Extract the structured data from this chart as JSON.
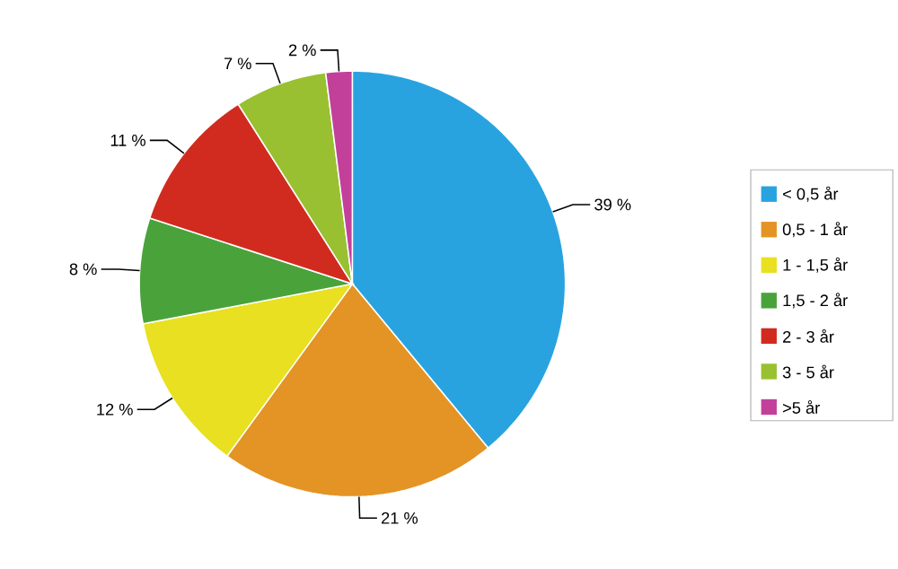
{
  "chart_data": {
    "type": "pie",
    "categories": [
      "< 0,5 år",
      "0,5 - 1 år",
      "1 - 1,5 år",
      "1,5 - 2 år",
      "2 - 3 år",
      "3 - 5 år",
      ">5 år"
    ],
    "values": [
      39,
      21,
      12,
      8,
      11,
      7,
      2
    ],
    "value_labels": [
      "39 %",
      "21 %",
      "12 %",
      "8 %",
      "11 %",
      "7 %",
      "2 %"
    ],
    "colors": [
      "#29a3e0",
      "#e39425",
      "#e8e020",
      "#4aa33a",
      "#d12b1f",
      "#99c031",
      "#c2409a"
    ],
    "legend": "right"
  }
}
